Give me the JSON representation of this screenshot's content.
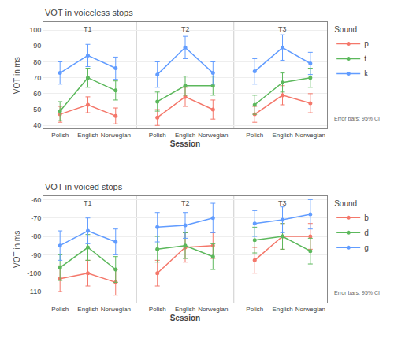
{
  "chart_data": [
    {
      "type": "line",
      "title": "VOT in voiceless stops",
      "xlabel": "Session",
      "ylabel": "VOT in ms",
      "categories": [
        "Polish",
        "English",
        "Norwegian"
      ],
      "groups": [
        "T1",
        "T2",
        "T3"
      ],
      "series": [
        {
          "name": "p",
          "color": "#f4776a",
          "values": [
            [
              47,
              53,
              46
            ],
            [
              45,
              58,
              50
            ],
            [
              47,
              59,
              54
            ]
          ],
          "errors": [
            [
              5,
              5,
              5
            ],
            [
              5,
              6,
              6
            ],
            [
              5,
              6,
              6
            ]
          ]
        },
        {
          "name": "t",
          "color": "#5cb85c",
          "values": [
            [
              49,
              70,
              62
            ],
            [
              55,
              65,
              65
            ],
            [
              53,
              67,
              70
            ]
          ],
          "errors": [
            [
              6,
              6,
              6
            ],
            [
              6,
              6,
              6
            ],
            [
              6,
              6,
              6
            ]
          ]
        },
        {
          "name": "k",
          "color": "#619cff",
          "values": [
            [
              73,
              84,
              76
            ],
            [
              72,
              89,
              73
            ],
            [
              74,
              89,
              79
            ]
          ],
          "errors": [
            [
              7,
              7,
              7
            ],
            [
              8,
              7,
              7
            ],
            [
              8,
              8,
              7
            ]
          ]
        }
      ],
      "ylim": [
        38,
        105
      ],
      "yticks": [
        40,
        50,
        60,
        70,
        80,
        90,
        100
      ],
      "grid": true,
      "legend": "right",
      "legend_title": "Sound",
      "annotations": [
        "Error bars: 95% CI"
      ]
    },
    {
      "type": "line",
      "title": "VOT in voiced stops",
      "xlabel": "Session",
      "ylabel": "VOT in ms",
      "categories": [
        "Polish",
        "English",
        "Norwegian"
      ],
      "groups": [
        "T1",
        "T2",
        "T3"
      ],
      "series": [
        {
          "name": "b",
          "color": "#f4776a",
          "values": [
            [
              -103,
              -100,
              -105
            ],
            [
              -100,
              -86,
              -85
            ],
            [
              -93,
              -80,
              -80
            ]
          ],
          "errors": [
            [
              7,
              7,
              7
            ],
            [
              7,
              8,
              7
            ],
            [
              7,
              7,
              7
            ]
          ]
        },
        {
          "name": "d",
          "color": "#5cb85c",
          "values": [
            [
              -97,
              -86,
              -98
            ],
            [
              -87,
              -85,
              -91
            ],
            [
              -82,
              -80,
              -88
            ]
          ],
          "errors": [
            [
              7,
              7,
              7
            ],
            [
              7,
              7,
              7
            ],
            [
              7,
              7,
              7
            ]
          ]
        },
        {
          "name": "g",
          "color": "#619cff",
          "values": [
            [
              -85,
              -77,
              -83
            ],
            [
              -75,
              -74,
              -70
            ],
            [
              -73,
              -71,
              -68
            ]
          ],
          "errors": [
            [
              8,
              7,
              7
            ],
            [
              8,
              7,
              8
            ],
            [
              7,
              7,
              8
            ]
          ]
        }
      ],
      "ylim": [
        -116,
        -58
      ],
      "yticks": [
        -110,
        -100,
        -90,
        -80,
        -70,
        -60
      ],
      "grid": true,
      "legend": "right",
      "legend_title": "Sound",
      "annotations": [
        "Error bars: 95% CI"
      ]
    }
  ]
}
